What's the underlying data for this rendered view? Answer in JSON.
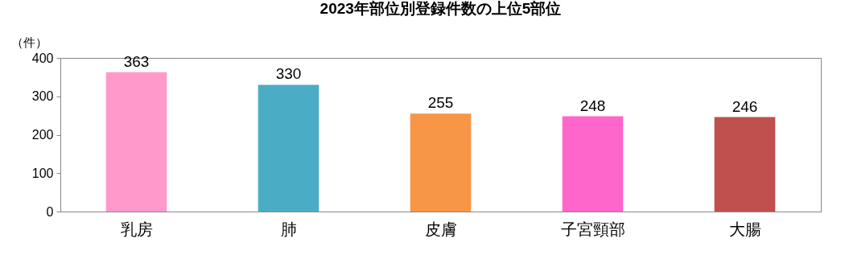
{
  "chart_data": {
    "type": "bar",
    "title": "2023年部位別登録件数の上位5部位",
    "ylabel": "（件）",
    "categories": [
      "乳房",
      "肺",
      "皮膚",
      "子宮頸部",
      "大腸"
    ],
    "values": [
      363,
      330,
      255,
      248,
      246
    ],
    "colors": [
      "#ff99cc",
      "#4bacc6",
      "#f79646",
      "#ff66cc",
      "#c0504d"
    ],
    "ylim": [
      0,
      400
    ],
    "yticks": [
      0,
      100,
      200,
      300,
      400
    ],
    "grid": false,
    "legend": false,
    "data_labels": true
  }
}
